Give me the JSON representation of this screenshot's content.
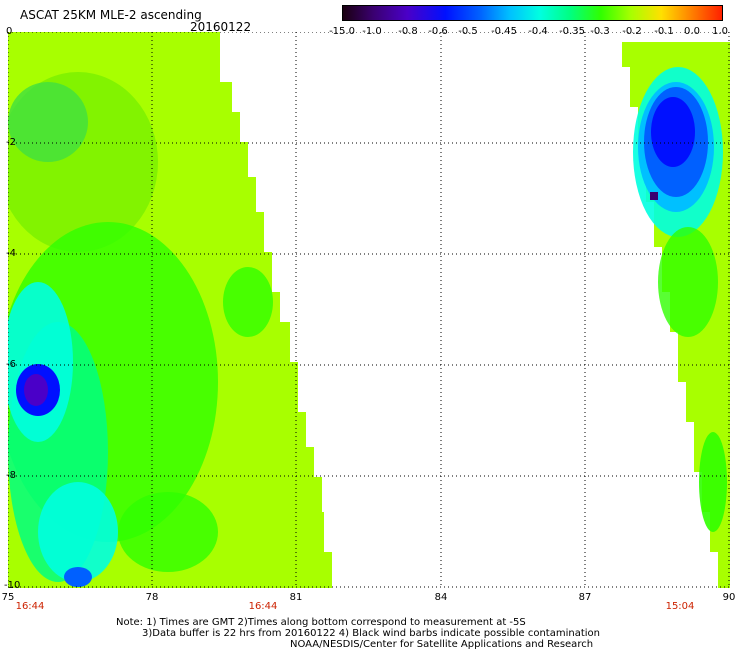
{
  "header": {
    "title": "ASCAT 25KM MLE-2 ascending",
    "date": "20160122"
  },
  "colorbar": {
    "labels": [
      "-15.0",
      "-1.0",
      "-0.8",
      "-0.6",
      "-0.5",
      "-0.45",
      "-0.4",
      "-0.35",
      "-0.3",
      "-0.2",
      "-0.1",
      "0.0",
      "1.0"
    ],
    "colors": [
      "#1a0010",
      "#3a0070",
      "#4a00c8",
      "#0010ff",
      "#0060ff",
      "#00c0ff",
      "#00ffe0",
      "#00ff80",
      "#30ff00",
      "#a8ff00",
      "#ffe000",
      "#ff8000",
      "#ff2000"
    ]
  },
  "axes": {
    "y_ticks": [
      "0",
      "-2",
      "-4",
      "-6",
      "-8",
      "-10"
    ],
    "x_ticks": [
      "75",
      "78",
      "81",
      "84",
      "87",
      "90"
    ]
  },
  "times": [
    "16:44",
    "16:44",
    "15:04"
  ],
  "notes": [
    "Note: 1) Times are GMT 2)Times along bottom correspond to measurement at -5S",
    "3)Data buffer is 22 hrs from 20160122 4) Black wind barbs indicate possible contamination",
    "NOAA/NESDIS/Center for Satellite Applications and Research"
  ]
}
